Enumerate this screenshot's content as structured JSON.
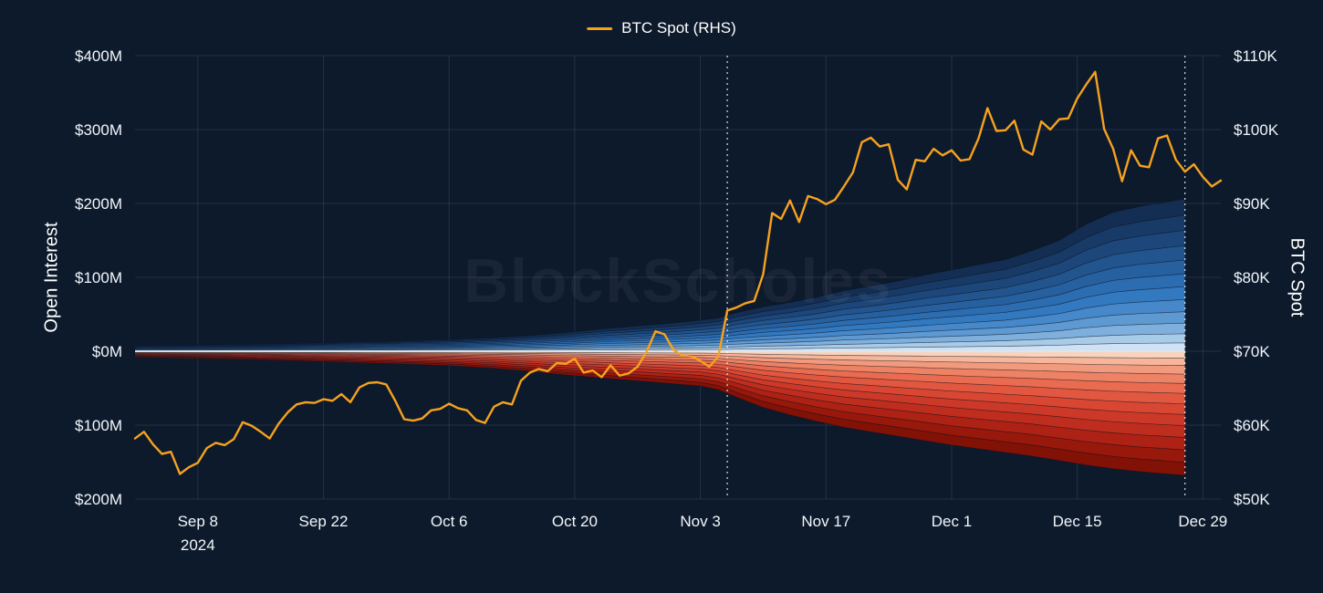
{
  "chart_data": {
    "type": "area",
    "title": "",
    "watermark": "BlockScholes",
    "legend": [
      {
        "label": "BTC Spot (RHS)",
        "color": "#f6a21e",
        "series": "btc_spot"
      }
    ],
    "left_axis": {
      "label": "Open Interest",
      "range": [
        -200,
        400
      ],
      "ticks": [
        {
          "v": 400,
          "label": "$400M"
        },
        {
          "v": 300,
          "label": "$300M"
        },
        {
          "v": 200,
          "label": "$200M"
        },
        {
          "v": 100,
          "label": "$100M"
        },
        {
          "v": 0,
          "label": "$0M"
        },
        {
          "v": -100,
          "label": "$100M"
        },
        {
          "v": -200,
          "label": "$200M"
        }
      ]
    },
    "right_axis": {
      "label": "BTC Spot",
      "range": [
        50,
        110
      ],
      "ticks": [
        {
          "v": 110,
          "label": "$110K"
        },
        {
          "v": 100,
          "label": "$100K"
        },
        {
          "v": 90,
          "label": "$90K"
        },
        {
          "v": 80,
          "label": "$80K"
        },
        {
          "v": 70,
          "label": "$70K"
        },
        {
          "v": 60,
          "label": "$60K"
        },
        {
          "v": 50,
          "label": "$50K"
        }
      ]
    },
    "x_axis": {
      "range": [
        0,
        121
      ],
      "origin": "2024-09-01",
      "ticks": [
        {
          "d": 7,
          "label": "Sep 8",
          "sub": "2024"
        },
        {
          "d": 21,
          "label": "Sep 22"
        },
        {
          "d": 35,
          "label": "Oct 6"
        },
        {
          "d": 49,
          "label": "Oct 20"
        },
        {
          "d": 63,
          "label": "Nov 3"
        },
        {
          "d": 77,
          "label": "Nov 17"
        },
        {
          "d": 91,
          "label": "Dec 1"
        },
        {
          "d": 105,
          "label": "Dec 15"
        },
        {
          "d": 119,
          "label": "Dec 29"
        }
      ]
    },
    "event_lines": [
      {
        "d": 66
      },
      {
        "d": 117
      }
    ],
    "btc_spot": {
      "units": "USD thousands",
      "days_start": 0,
      "days_step": 1,
      "values_k": [
        58.2,
        59.1,
        57.4,
        56.1,
        56.4,
        53.4,
        54.3,
        54.9,
        56.9,
        57.6,
        57.3,
        58.1,
        60.4,
        59.9,
        59.1,
        58.2,
        60.2,
        61.7,
        62.8,
        63.1,
        63.0,
        63.5,
        63.3,
        64.2,
        63.1,
        65.1,
        65.7,
        65.8,
        65.5,
        63.3,
        60.8,
        60.6,
        60.9,
        62.0,
        62.2,
        62.9,
        62.3,
        62.0,
        60.7,
        60.3,
        62.5,
        63.1,
        62.8,
        66.0,
        67.1,
        67.6,
        67.3,
        68.4,
        68.3,
        69.0,
        67.1,
        67.4,
        66.5,
        68.1,
        66.7,
        67.0,
        67.9,
        69.9,
        72.7,
        72.3,
        70.2,
        69.4,
        69.3,
        68.7,
        67.9,
        69.3,
        75.5,
        75.9,
        76.5,
        76.8,
        80.4,
        88.7,
        87.9,
        90.4,
        87.5,
        91.0,
        90.6,
        89.9,
        90.5,
        92.3,
        94.2,
        98.3,
        98.9,
        97.7,
        98.0,
        93.2,
        91.9,
        95.9,
        95.7,
        97.4,
        96.5,
        97.2,
        95.8,
        96.0,
        98.8,
        102.9,
        99.8,
        99.9,
        101.2,
        97.3,
        96.6,
        101.1,
        100.0,
        101.4,
        101.5,
        104.2,
        106.1,
        107.8,
        100.1,
        97.4,
        93.0,
        97.2,
        95.1,
        94.9,
        98.8,
        99.2,
        95.9,
        94.3,
        95.3,
        93.6,
        92.3,
        93.1
      ]
    },
    "open_interest_m": {
      "units": "USD millions",
      "days": [
        0,
        4,
        8,
        12,
        16,
        20,
        24,
        28,
        32,
        36,
        40,
        44,
        48,
        52,
        56,
        60,
        63,
        65,
        67,
        70,
        73,
        76,
        79,
        82,
        85,
        88,
        91,
        94,
        97,
        100,
        103,
        106,
        109,
        112,
        115,
        117
      ],
      "calls_total": [
        7,
        8,
        8.5,
        9,
        10,
        11,
        12,
        13,
        14.5,
        16,
        18,
        21,
        25,
        30,
        34,
        38,
        42,
        45,
        52,
        60,
        66,
        73,
        82,
        88,
        95,
        103,
        110,
        117,
        124,
        136,
        150,
        172,
        188,
        196,
        202,
        206
      ],
      "puts_total": [
        8,
        9,
        10,
        11,
        12,
        13.5,
        15,
        16.5,
        18,
        20,
        23,
        27,
        32,
        36,
        40,
        44,
        47,
        52,
        62,
        76,
        86,
        95,
        103,
        109,
        115,
        121,
        127,
        132,
        137,
        142,
        148,
        154,
        159,
        163,
        166,
        168
      ],
      "band_weights": [
        0.055,
        0.06,
        0.07,
        0.075,
        0.08,
        0.085,
        0.085,
        0.09,
        0.095,
        0.1,
        0.1,
        0.105
      ],
      "call_colors": [
        "#cfe2f3",
        "#a8cbe8",
        "#7fb0dd",
        "#5e99d2",
        "#4688c9",
        "#3379bf",
        "#2c6cb0",
        "#27609f",
        "#22548d",
        "#1d477a",
        "#183a66",
        "#132e52"
      ],
      "put_colors": [
        "#f9d3bc",
        "#f6b69b",
        "#f29a7d",
        "#ee8264",
        "#e96c50",
        "#e25740",
        "#d94733",
        "#cd3928",
        "#bf2d1e",
        "#ad2214",
        "#98180c",
        "#821106"
      ]
    },
    "style": {
      "background": "#0d1a2c",
      "grid_color": "rgba(150,170,200,0.16)",
      "band_edge_color": "rgba(10,18,32,0.45)",
      "zero_line_color": "#dce8f2",
      "event_line_color": "#ffffff",
      "tick_text_color": "#ffffff"
    }
  }
}
